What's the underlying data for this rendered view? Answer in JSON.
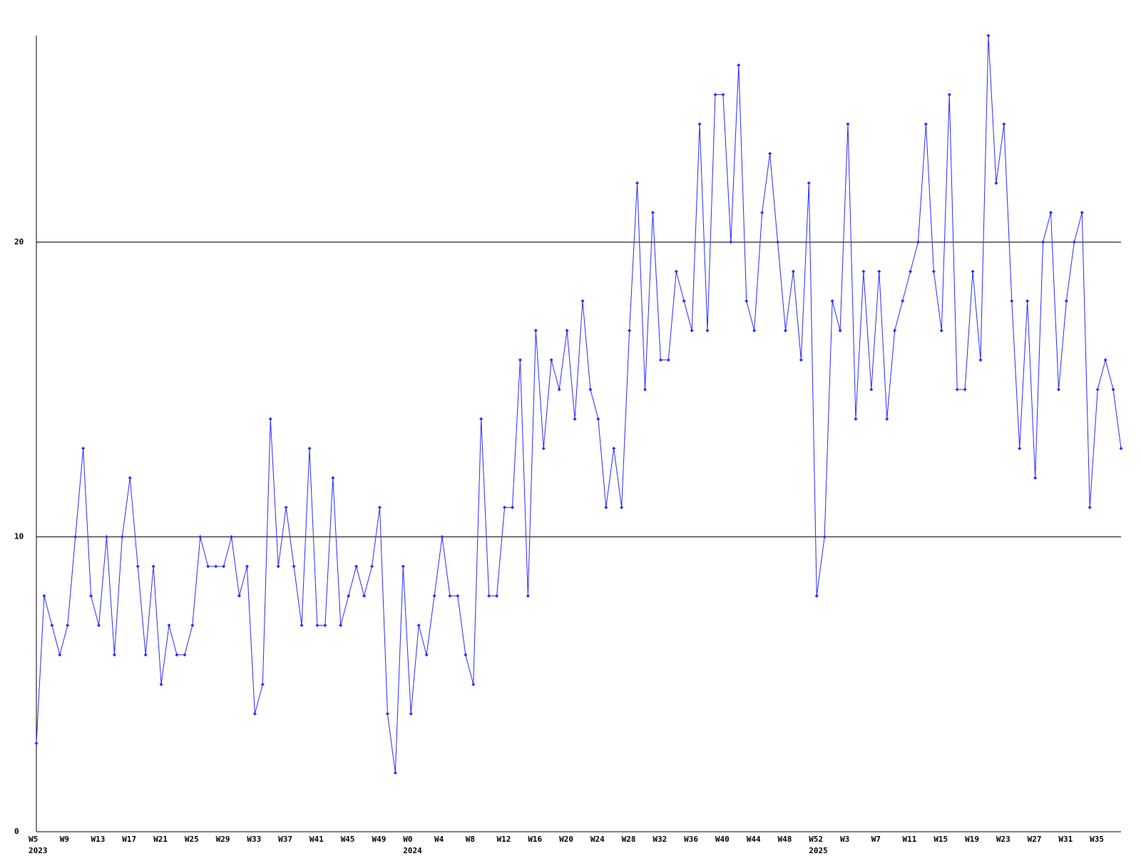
{
  "chart_data": {
    "type": "line",
    "categories": [
      "W5",
      null,
      null,
      null,
      "W9",
      null,
      null,
      null,
      "W13",
      null,
      null,
      null,
      "W17",
      null,
      null,
      null,
      "W21",
      null,
      null,
      null,
      "W25",
      null,
      null,
      null,
      "W29",
      null,
      null,
      null,
      "W33",
      null,
      null,
      null,
      "W37",
      null,
      null,
      null,
      "W41",
      null,
      null,
      null,
      "W45",
      null,
      null,
      null,
      "W49",
      null,
      null,
      null,
      "W0",
      null,
      null,
      null,
      "W4",
      null,
      null,
      null,
      "W8",
      null,
      null,
      null,
      "W12",
      null,
      null,
      null,
      "W16",
      null,
      null,
      null,
      "W20",
      null,
      null,
      null,
      "W24",
      null,
      null,
      null,
      "W28",
      null,
      null,
      null,
      "W32",
      null,
      null,
      null,
      "W36",
      null,
      null,
      null,
      "W40",
      null,
      null,
      null,
      "W44",
      null,
      null,
      null,
      "W48",
      null,
      null,
      null,
      "W52",
      null,
      null,
      null,
      "W3",
      null,
      null,
      null,
      "W7",
      null,
      null,
      null,
      "W11",
      null,
      null,
      null,
      "W15",
      null,
      null,
      null,
      "W19",
      null,
      null,
      null,
      "W23",
      null,
      null,
      null,
      "W27",
      null,
      null,
      null,
      "W31",
      null,
      null,
      null,
      "W35",
      null,
      null,
      null
    ],
    "years": [
      "2023",
      null,
      null,
      null,
      null,
      null,
      null,
      null,
      null,
      null,
      null,
      null,
      null,
      null,
      null,
      null,
      null,
      null,
      null,
      null,
      null,
      null,
      null,
      null,
      null,
      null,
      null,
      null,
      null,
      null,
      null,
      null,
      null,
      null,
      null,
      null,
      null,
      null,
      null,
      null,
      null,
      null,
      null,
      null,
      null,
      null,
      null,
      null,
      "2024",
      null,
      null,
      null,
      null,
      null,
      null,
      null,
      null,
      null,
      null,
      null,
      null,
      null,
      null,
      null,
      null,
      null,
      null,
      null,
      null,
      null,
      null,
      null,
      null,
      null,
      null,
      null,
      null,
      null,
      null,
      null,
      null,
      null,
      null,
      null,
      null,
      null,
      null,
      null,
      null,
      null,
      null,
      null,
      null,
      null,
      null,
      null,
      null,
      null,
      null,
      null,
      "2025",
      null,
      null,
      null,
      null,
      null,
      null,
      null,
      null,
      null,
      null,
      null,
      null,
      null,
      null,
      null,
      null,
      null,
      null,
      null,
      null,
      null,
      null,
      null,
      null,
      null,
      null,
      null,
      null,
      null,
      null,
      null,
      null,
      null,
      null,
      null,
      null,
      null,
      null,
      null
    ],
    "series": [
      {
        "color": "#2b2bff",
        "values": [
          3,
          8,
          7,
          6,
          7,
          10,
          13,
          8,
          7,
          10,
          6,
          10,
          12,
          9,
          6,
          9,
          5,
          7,
          6,
          6,
          7,
          10,
          9,
          9,
          9,
          10,
          8,
          9,
          4,
          5,
          14,
          9,
          11,
          9,
          7,
          13,
          7,
          7,
          12,
          7,
          8,
          9,
          8,
          9,
          11,
          4,
          2,
          9,
          4,
          7,
          6,
          8,
          10,
          8,
          8,
          6,
          5,
          14,
          8,
          8,
          11,
          11,
          16,
          8,
          17,
          13,
          16,
          15,
          17,
          14,
          18,
          15,
          14,
          11,
          13,
          11,
          17,
          22,
          15,
          21,
          16,
          16,
          19,
          18,
          17,
          24,
          17,
          25,
          25,
          20,
          26,
          18,
          17,
          21,
          23,
          20,
          17,
          19,
          16,
          22,
          8,
          10,
          18,
          17,
          24,
          14,
          19,
          15,
          19,
          14,
          17,
          18,
          19,
          20,
          24,
          19,
          17,
          25,
          15,
          15,
          19,
          16,
          27,
          22,
          24,
          18,
          13,
          18,
          12,
          20,
          21,
          15,
          18,
          20,
          21,
          11,
          15,
          16,
          15,
          13
        ]
      }
    ],
    "ylim": [
      0,
      27
    ],
    "yticks": [
      0,
      10,
      20
    ],
    "grid": true
  }
}
